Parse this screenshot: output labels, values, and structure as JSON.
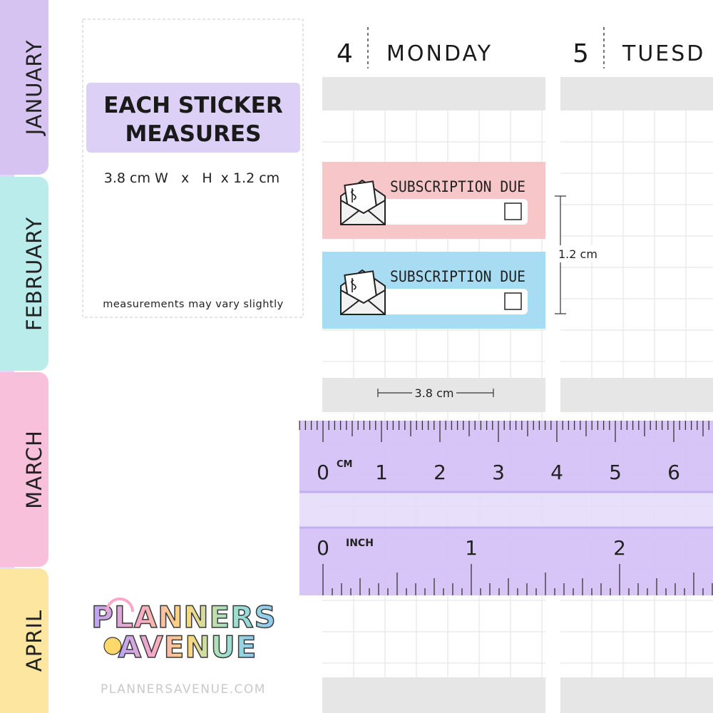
{
  "tabs": [
    "JANUARY",
    "FEBRUARY",
    "MARCH",
    "APRIL"
  ],
  "info": {
    "title_lines": [
      "EACH STICKER",
      "MEASURES"
    ],
    "size": "3.8 cm W   x   H  x 1.2 cm",
    "note": "measurements may vary slightly"
  },
  "days": [
    {
      "number": "4",
      "name": "MONDAY"
    },
    {
      "number": "5",
      "name": "TUESD"
    }
  ],
  "stickers": [
    {
      "text": "SUBSCRIPTION DUE"
    },
    {
      "text": "SUBSCRIPTION DUE"
    }
  ],
  "dimensions": {
    "height": "1.2 cm",
    "width": "3.8 cm"
  },
  "ruler": {
    "cm_unit": "CM",
    "cm_labels": [
      "0",
      "1",
      "2",
      "3",
      "4",
      "5",
      "6"
    ],
    "inch_unit": "INCH",
    "inch_labels": [
      "0",
      "1",
      "2"
    ]
  },
  "logo": {
    "line1": "PLANNERS",
    "line2": "AVENUE"
  },
  "footer": "PLANNERSAVENUE.COM"
}
